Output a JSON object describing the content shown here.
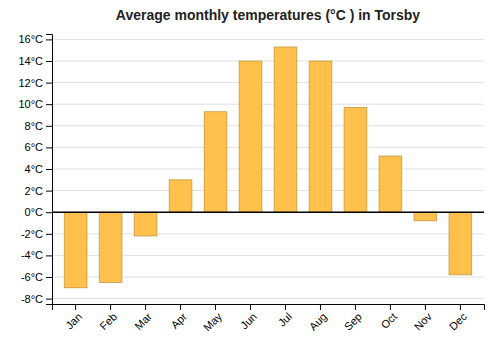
{
  "chart_data": {
    "type": "bar",
    "title": "Average monthly temperatures (°C ) in Torsby",
    "categories": [
      "Jan",
      "Feb",
      "Mar",
      "Apr",
      "May",
      "Jun",
      "Jul",
      "Aug",
      "Sep",
      "Oct",
      "Nov",
      "Dec"
    ],
    "values": [
      -7.0,
      -6.5,
      -2.2,
      3.0,
      9.3,
      14.0,
      15.3,
      14.0,
      9.7,
      5.2,
      -0.8,
      -5.8
    ],
    "color": "#FFC04C",
    "ylim": [
      -8.5,
      16.5
    ],
    "yticks": [
      {
        "value": -8,
        "label": "-8°C"
      },
      {
        "value": -6,
        "label": "-6°C"
      },
      {
        "value": -4,
        "label": "-4°C"
      },
      {
        "value": -2,
        "label": "-2°C"
      },
      {
        "value": 0,
        "label": "0°C"
      },
      {
        "value": 2,
        "label": "2°C"
      },
      {
        "value": 4,
        "label": "4°C"
      },
      {
        "value": 6,
        "label": "6°C"
      },
      {
        "value": 8,
        "label": "8°C"
      },
      {
        "value": 10,
        "label": "10°C"
      },
      {
        "value": 12,
        "label": "12°C"
      },
      {
        "value": 14,
        "label": "14°C"
      },
      {
        "value": 16,
        "label": "16°C"
      }
    ],
    "grid": true
  }
}
